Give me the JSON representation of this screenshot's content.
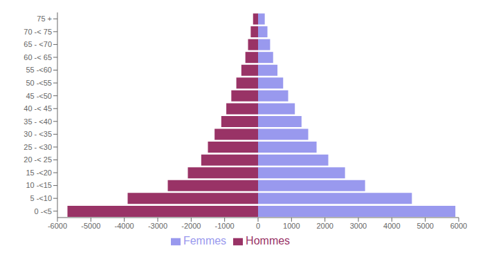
{
  "chart_data": {
    "type": "bar",
    "orientation": "horizontal",
    "categories": [
      "0 -<5",
      "5 -<10",
      "10 -<15",
      "15 -<20",
      "20 -< 25",
      "25 - <30",
      "30 - <35",
      "35 - <40",
      "40 -< 45",
      "45 -<50",
      "50 -<55",
      "55 -<60",
      "60 -< 65",
      "65 - <70",
      "70 -< 75",
      "75 +"
    ],
    "series": [
      {
        "name": "Hommes",
        "color": "#993366",
        "values": [
          -5700,
          -3900,
          -2700,
          -2100,
          -1700,
          -1500,
          -1300,
          -1100,
          -950,
          -800,
          -650,
          -500,
          -380,
          -300,
          -220,
          -150
        ]
      },
      {
        "name": "Femmes",
        "color": "#9999EE",
        "values": [
          5900,
          4600,
          3200,
          2600,
          2100,
          1750,
          1500,
          1300,
          1100,
          900,
          750,
          580,
          450,
          360,
          280,
          200
        ]
      }
    ],
    "xlim": [
      -6000,
      6000
    ],
    "xticks": [
      -6000,
      -5000,
      -4000,
      -3000,
      -2000,
      -1000,
      0,
      1000,
      2000,
      3000,
      4000,
      5000,
      6000
    ],
    "grid": false,
    "legend": "bottom"
  }
}
